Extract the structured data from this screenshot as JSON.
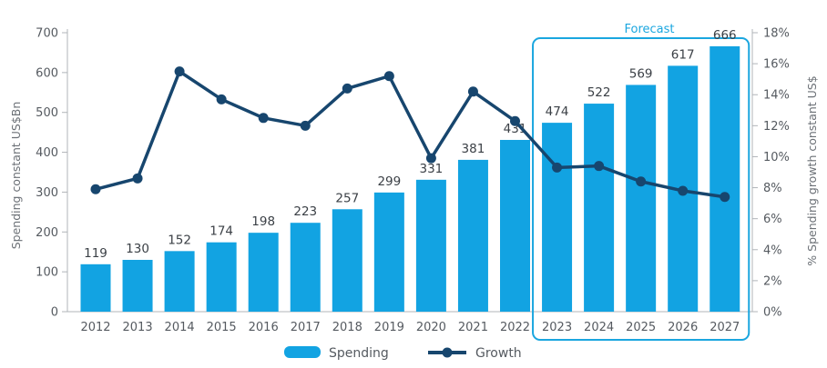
{
  "chart_data": {
    "type": "bar",
    "categories": [
      "2012",
      "2013",
      "2014",
      "2015",
      "2016",
      "2017",
      "2018",
      "2019",
      "2020",
      "2021",
      "2022",
      "2023",
      "2024",
      "2025",
      "2026",
      "2027"
    ],
    "series": [
      {
        "name": "Spending",
        "type": "bar",
        "axis": "left",
        "values": [
          119,
          130,
          152,
          174,
          198,
          223,
          257,
          299,
          331,
          381,
          431,
          474,
          522,
          569,
          617,
          666
        ]
      },
      {
        "name": "Growth",
        "type": "line",
        "axis": "right",
        "values": [
          7.9,
          8.6,
          15.5,
          13.7,
          12.5,
          12.0,
          14.4,
          15.2,
          9.9,
          14.2,
          12.3,
          9.3,
          9.4,
          8.4,
          7.8,
          7.4
        ]
      }
    ],
    "ylabel": "Spending constant US$Bn",
    "ylabel_right": "% Spending growth constant US$",
    "ylim": [
      0,
      700
    ],
    "ylim_right": [
      0,
      18
    ],
    "yticks": [
      "0",
      "100",
      "200",
      "300",
      "400",
      "500",
      "600",
      "700"
    ],
    "yticks_right": [
      "0%",
      "2%",
      "4%",
      "6%",
      "8%",
      "10%",
      "12%",
      "14%",
      "16%",
      "18%"
    ],
    "forecast_label": "Forecast",
    "forecast_range": [
      "2023",
      "2027"
    ],
    "legend": [
      {
        "name": "Spending"
      },
      {
        "name": "Growth"
      }
    ],
    "legend_position": "bottom",
    "colors": {
      "bar": "#12a3e2",
      "line": "#17466e",
      "forecast_box": "#1aa6df",
      "axis": "#b0b4b8"
    }
  }
}
